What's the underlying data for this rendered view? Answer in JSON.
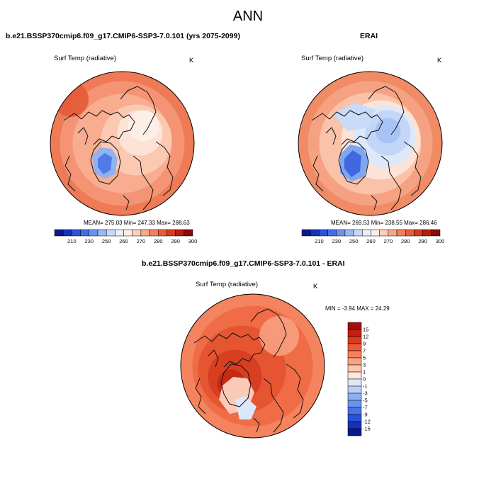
{
  "page": {
    "title": "ANN"
  },
  "chart_data": [
    {
      "type": "heatmap",
      "projection": "north-polar-stereographic",
      "title": "b.e21.BSSP370cmip6.f09_g17.CMIP6-SSP3-7.0.101 (yrs 2075-2099)",
      "field_label": "Surf Temp (radiative)",
      "units": "K",
      "stats_text": "MEAN= 275.03  Min= 247.33  Max= 288.63",
      "mean": 275.03,
      "min": 247.33,
      "max": 288.63,
      "colorbar": {
        "ticks": [
          "210",
          "230",
          "250",
          "260",
          "270",
          "280",
          "290",
          "300"
        ],
        "colors": [
          "#0a1a8c",
          "#1631b8",
          "#2a52d8",
          "#3f6fe6",
          "#6a93ef",
          "#9bb8f5",
          "#c6d8fa",
          "#e8eefa",
          "#fdeee4",
          "#fccfb6",
          "#f9a887",
          "#f4805d",
          "#ec5a3a",
          "#d83a20",
          "#b52010",
          "#8c0a08"
        ]
      }
    },
    {
      "type": "heatmap",
      "projection": "north-polar-stereographic",
      "title": "ERAI",
      "field_label": "Surf Temp (radiative)",
      "units": "K",
      "stats_text": "MEAN= 269.53  Min= 238.55  Max= 286.46",
      "mean": 269.53,
      "min": 238.55,
      "max": 286.46,
      "colorbar": {
        "ticks": [
          "210",
          "230",
          "250",
          "260",
          "270",
          "280",
          "290",
          "300"
        ],
        "colors": [
          "#0a1a8c",
          "#1631b8",
          "#2a52d8",
          "#3f6fe6",
          "#6a93ef",
          "#9bb8f5",
          "#c6d8fa",
          "#e8eefa",
          "#fdeee4",
          "#fccfb6",
          "#f9a887",
          "#f4805d",
          "#ec5a3a",
          "#d83a20",
          "#b52010",
          "#8c0a08"
        ]
      }
    },
    {
      "type": "heatmap",
      "projection": "north-polar-stereographic",
      "title": "b.e21.BSSP370cmip6.f09_g17.CMIP6-SSP3-7.0.101 - ERAI",
      "field_label": "Surf Temp (radiative)",
      "units": "K",
      "stats_text": "MIN =  -3.94 MAX =  24.29",
      "min": -3.94,
      "max": 24.29,
      "colorbar": {
        "ticks": [
          "15",
          "12",
          "9",
          "7",
          "5",
          "3",
          "1",
          "0",
          "-1",
          "-3",
          "-5",
          "-7",
          "-9",
          "-12",
          "-15"
        ],
        "colors": [
          "#a30f0a",
          "#c41e12",
          "#dc3a20",
          "#ec5a38",
          "#f4805d",
          "#f8a384",
          "#fbc6ad",
          "#fde6da",
          "#dde9fb",
          "#b9cff6",
          "#8eb0f0",
          "#6a93ef",
          "#4673e6",
          "#2a52d8",
          "#1631b8",
          "#0a1a8c"
        ]
      }
    }
  ]
}
